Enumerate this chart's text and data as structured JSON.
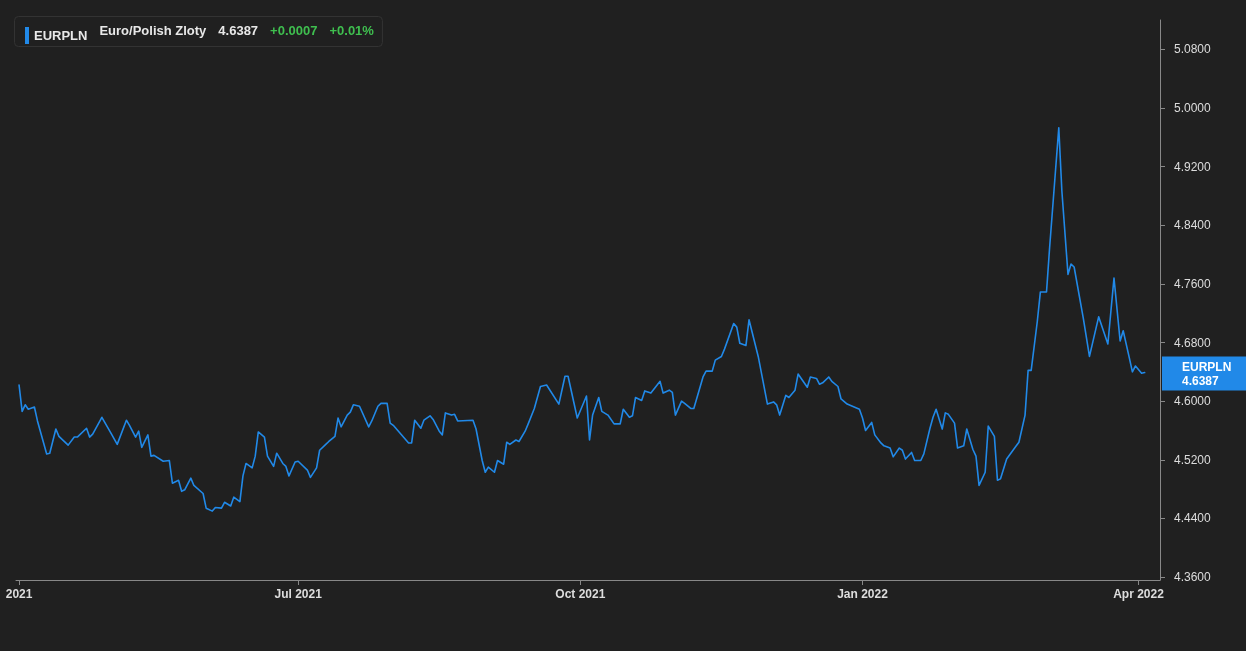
{
  "chart_data": {
    "type": "line",
    "annotations": [
      "Euro/Polish Zloty",
      "4.6387",
      "+0.0007",
      "+0.01%",
      "EURPLN\n4.6387"
    ],
    "x": [
      "2021-04-01",
      "2021-04-02",
      "2021-04-03",
      "2021-04-04",
      "2021-04-06",
      "2021-04-07",
      "2021-04-09",
      "2021-04-10",
      "2021-04-11",
      "2021-04-13",
      "2021-04-14",
      "2021-04-17",
      "2021-04-19",
      "2021-04-20",
      "2021-04-23",
      "2021-04-24",
      "2021-04-25",
      "2021-04-28",
      "2021-05-01",
      "2021-05-03",
      "2021-05-06",
      "2021-05-07",
      "2021-05-09",
      "2021-05-10",
      "2021-05-11",
      "2021-05-13",
      "2021-05-14",
      "2021-05-15",
      "2021-05-18",
      "2021-05-20",
      "2021-05-21",
      "2021-05-23",
      "2021-05-24",
      "2021-05-25",
      "2021-05-27",
      "2021-05-28",
      "2021-05-31",
      "2021-06-01",
      "2021-06-03",
      "2021-06-04",
      "2021-06-06",
      "2021-06-07",
      "2021-06-09",
      "2021-06-10",
      "2021-06-12",
      "2021-06-13",
      "2021-06-14",
      "2021-06-16",
      "2021-06-17",
      "2021-06-18",
      "2021-06-20",
      "2021-06-21",
      "2021-06-23",
      "2021-06-24",
      "2021-06-26",
      "2021-06-27",
      "2021-06-28",
      "2021-06-30",
      "2021-07-01",
      "2021-07-04",
      "2021-07-05",
      "2021-07-07",
      "2021-07-08",
      "2021-07-10",
      "2021-07-11",
      "2021-07-13",
      "2021-07-14",
      "2021-07-15",
      "2021-07-17",
      "2021-07-18",
      "2021-07-19",
      "2021-07-21",
      "2021-07-24",
      "2021-07-25",
      "2021-07-27",
      "2021-07-28",
      "2021-07-30",
      "2021-07-31",
      "2021-08-01",
      "2021-08-06",
      "2021-08-07",
      "2021-08-08",
      "2021-08-10",
      "2021-08-11",
      "2021-08-13",
      "2021-08-14",
      "2021-08-16",
      "2021-08-17",
      "2021-08-18",
      "2021-08-20",
      "2021-08-21",
      "2021-08-22",
      "2021-08-27",
      "2021-08-28",
      "2021-08-30",
      "2021-08-31",
      "2021-09-01",
      "2021-09-03",
      "2021-09-04",
      "2021-09-06",
      "2021-09-07",
      "2021-09-08",
      "2021-09-10",
      "2021-09-11",
      "2021-09-13",
      "2021-09-14",
      "2021-09-16",
      "2021-09-18",
      "2021-09-20",
      "2021-09-24",
      "2021-09-26",
      "2021-09-27",
      "2021-09-30",
      "2021-10-03",
      "2021-10-04",
      "2021-10-05",
      "2021-10-07",
      "2021-10-08",
      "2021-10-10",
      "2021-10-12",
      "2021-10-14",
      "2021-10-15",
      "2021-10-17",
      "2021-10-18",
      "2021-10-19",
      "2021-10-21",
      "2021-10-22",
      "2021-10-24",
      "2021-10-27",
      "2021-10-28",
      "2021-10-30",
      "2021-10-31",
      "2021-11-01",
      "2021-11-03",
      "2021-11-04",
      "2021-11-06",
      "2021-11-07",
      "2021-11-10",
      "2021-11-11",
      "2021-11-13",
      "2021-11-14",
      "2021-11-16",
      "2021-11-17",
      "2021-11-20",
      "2021-11-21",
      "2021-11-22",
      "2021-11-24",
      "2021-11-25",
      "2021-11-28",
      "2021-12-01",
      "2021-12-03",
      "2021-12-04",
      "2021-12-05",
      "2021-12-07",
      "2021-12-08",
      "2021-12-10",
      "2021-12-11",
      "2021-12-14",
      "2021-12-15",
      "2021-12-17",
      "2021-12-18",
      "2021-12-19",
      "2021-12-21",
      "2021-12-22",
      "2021-12-24",
      "2021-12-25",
      "2021-12-27",
      "2021-12-31",
      "2022-01-01",
      "2022-01-02",
      "2022-01-04",
      "2022-01-05",
      "2022-01-07",
      "2022-01-08",
      "2022-01-10",
      "2022-01-11",
      "2022-01-13",
      "2022-01-14",
      "2022-01-15",
      "2022-01-17",
      "2022-01-18",
      "2022-01-20",
      "2022-01-21",
      "2022-01-23",
      "2022-01-24",
      "2022-01-25",
      "2022-01-27",
      "2022-01-28",
      "2022-01-29",
      "2022-01-31",
      "2022-02-01",
      "2022-02-03",
      "2022-02-04",
      "2022-02-06",
      "2022-02-07",
      "2022-02-08",
      "2022-02-10",
      "2022-02-11",
      "2022-02-13",
      "2022-02-14",
      "2022-02-15",
      "2022-02-17",
      "2022-02-21",
      "2022-02-23",
      "2022-02-24",
      "2022-02-25",
      "2022-02-27",
      "2022-02-28",
      "2022-03-02",
      "2022-03-03",
      "2022-03-06",
      "2022-03-07",
      "2022-03-09",
      "2022-03-10",
      "2022-03-11",
      "2022-03-14",
      "2022-03-16",
      "2022-03-19",
      "2022-03-22",
      "2022-03-24",
      "2022-03-26",
      "2022-03-27",
      "2022-03-29",
      "2022-03-30",
      "2022-03-31",
      "2022-04-02",
      "2022-04-03"
    ],
    "series": [
      {
        "name": "EURPLN",
        "color": "#2189e8",
        "values": [
          4.622,
          4.586,
          4.595,
          4.589,
          4.592,
          4.573,
          4.543,
          4.528,
          4.529,
          4.562,
          4.552,
          4.54,
          4.551,
          4.551,
          4.563,
          4.551,
          4.555,
          4.578,
          4.556,
          4.541,
          4.574,
          4.567,
          4.551,
          4.559,
          4.537,
          4.554,
          4.525,
          4.526,
          4.518,
          4.519,
          4.488,
          4.492,
          4.477,
          4.479,
          4.495,
          4.485,
          4.474,
          4.454,
          4.45,
          4.455,
          4.454,
          4.462,
          4.457,
          4.469,
          4.463,
          4.498,
          4.515,
          4.509,
          4.525,
          4.558,
          4.551,
          4.525,
          4.511,
          4.529,
          4.515,
          4.511,
          4.498,
          4.517,
          4.518,
          4.506,
          4.496,
          4.509,
          4.533,
          4.541,
          4.545,
          4.552,
          4.577,
          4.565,
          4.581,
          4.585,
          4.595,
          4.593,
          4.565,
          4.573,
          4.593,
          4.597,
          4.597,
          4.57,
          4.567,
          4.543,
          4.543,
          4.574,
          4.563,
          4.574,
          4.58,
          4.575,
          4.559,
          4.554,
          4.584,
          4.581,
          4.582,
          4.573,
          4.574,
          4.562,
          4.519,
          4.503,
          4.51,
          4.503,
          4.519,
          4.514,
          4.544,
          4.541,
          4.547,
          4.545,
          4.559,
          4.569,
          4.59,
          4.62,
          4.622,
          4.596,
          4.634,
          4.634,
          4.577,
          4.607,
          4.547,
          4.581,
          4.605,
          4.586,
          4.581,
          4.569,
          4.569,
          4.589,
          4.578,
          4.58,
          4.605,
          4.601,
          4.614,
          4.611,
          4.627,
          4.611,
          4.615,
          4.612,
          4.581,
          4.6,
          4.597,
          4.59,
          4.59,
          4.633,
          4.641,
          4.641,
          4.656,
          4.661,
          4.671,
          4.706,
          4.701,
          4.679,
          4.676,
          4.711,
          4.661,
          4.596,
          4.599,
          4.595,
          4.581,
          4.608,
          4.605,
          4.615,
          4.637,
          4.619,
          4.633,
          4.631,
          4.623,
          4.625,
          4.633,
          4.627,
          4.62,
          4.603,
          4.596,
          4.589,
          4.577,
          4.56,
          4.571,
          4.554,
          4.543,
          4.539,
          4.536,
          4.524,
          4.536,
          4.533,
          4.521,
          4.53,
          4.519,
          4.519,
          4.528,
          4.563,
          4.578,
          4.589,
          4.562,
          4.584,
          4.582,
          4.57,
          4.536,
          4.539,
          4.562,
          4.534,
          4.525,
          4.485,
          4.503,
          4.566,
          4.552,
          4.492,
          4.494,
          4.521,
          4.544,
          4.581,
          4.642,
          4.642,
          4.709,
          4.749,
          4.749,
          4.809,
          4.973,
          4.887,
          4.773,
          4.787,
          4.783,
          4.713,
          4.661,
          4.715,
          4.678,
          4.768,
          4.682,
          4.696,
          4.659,
          4.64,
          4.648,
          4.638,
          4.639
        ]
      }
    ],
    "xlim": [
      "2021-03-31",
      "2022-04-08"
    ],
    "xticks": [
      {
        "value": "2021-04-01",
        "label": "2021"
      },
      {
        "value": "2021-07-01",
        "label": "Jul 2021"
      },
      {
        "value": "2021-10-01",
        "label": "Oct 2021"
      },
      {
        "value": "2022-01-01",
        "label": "Jan 2022"
      },
      {
        "value": "2022-04-01",
        "label": "Apr 2022"
      }
    ],
    "ylim": [
      4.356,
      5.12
    ],
    "yticks": [
      {
        "value": 4.36,
        "label": "4.3600"
      },
      {
        "value": 4.44,
        "label": "4.4400"
      },
      {
        "value": 4.52,
        "label": "4.5200"
      },
      {
        "value": 4.6,
        "label": "4.6000"
      },
      {
        "value": 4.68,
        "label": "4.6800"
      },
      {
        "value": 4.76,
        "label": "4.7600"
      },
      {
        "value": 4.84,
        "label": "4.8400"
      },
      {
        "value": 4.92,
        "label": "4.9200"
      },
      {
        "value": 5.0,
        "label": "5.0000"
      },
      {
        "value": 5.08,
        "label": "5.0800"
      }
    ],
    "grid": false,
    "legend": "top left",
    "marker": "none",
    "line_style": "solid"
  }
}
